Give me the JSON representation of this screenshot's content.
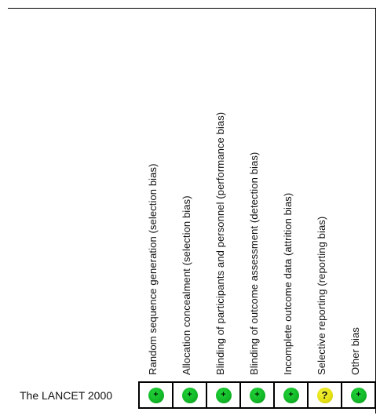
{
  "domains": [
    "Random sequence generation (selection bias)",
    "Allocation concealment (selection bias)",
    "Blinding of participants and personnel (performance bias)",
    "Blinding of outcome assessment (detection bias)",
    "Incomplete outcome data (attrition bias)",
    "Selective reporting (reporting bias)",
    "Other bias"
  ],
  "studies": [
    {
      "name": "The LANCET 2000",
      "judgements": [
        "low",
        "low",
        "low",
        "low",
        "low",
        "unclear",
        "low"
      ],
      "symbols": [
        "+",
        "+",
        "+",
        "+",
        "+",
        "?",
        "+"
      ]
    }
  ],
  "colors": {
    "low": "#11b626",
    "unclear": "#e4df10"
  }
}
